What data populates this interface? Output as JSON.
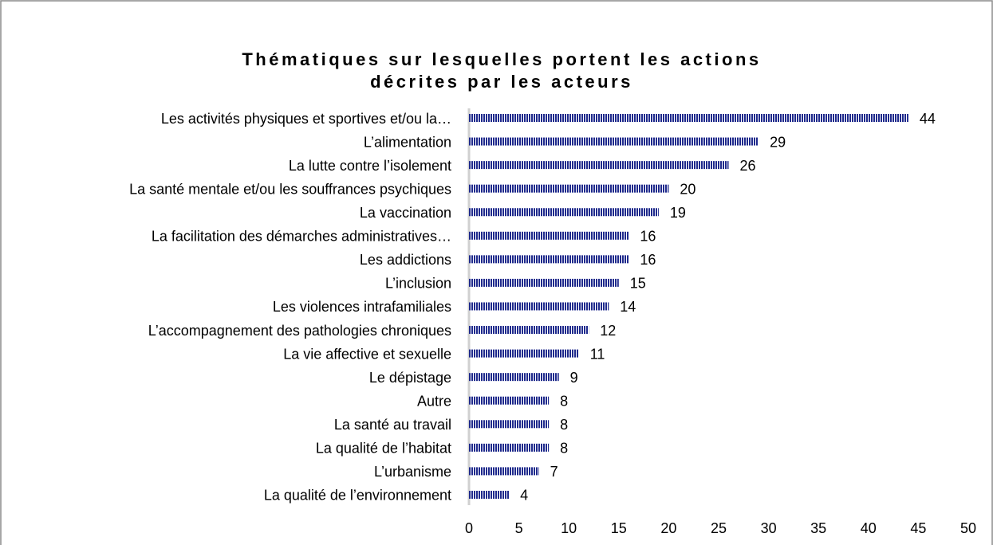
{
  "chart_data": {
    "type": "bar",
    "orientation": "horizontal",
    "title": [
      "Thématiques sur lesquelles portent les actions",
      "décrites par les acteurs"
    ],
    "categories": [
      "Les activités physiques et sportives et/ou la…",
      "L’alimentation",
      "La lutte contre l’isolement",
      "La santé mentale et/ou les souffrances psychiques",
      "La vaccination",
      "La facilitation des démarches administratives…",
      "Les addictions",
      "L’inclusion",
      "Les violences intrafamiliales",
      "L’accompagnement des pathologies chroniques",
      "La vie affective et sexuelle",
      "Le dépistage",
      "Autre",
      "La santé au travail",
      "La qualité de l’habitat",
      "L’urbanisme",
      "La qualité de l’environnement"
    ],
    "values": [
      44,
      29,
      26,
      20,
      19,
      16,
      16,
      15,
      14,
      12,
      11,
      9,
      8,
      8,
      8,
      7,
      4
    ],
    "color": "#1f2a8c",
    "xlim": [
      0,
      50
    ],
    "xticks": [
      0,
      5,
      10,
      15,
      20,
      25,
      30,
      35,
      40,
      45,
      50
    ],
    "grid": false
  }
}
